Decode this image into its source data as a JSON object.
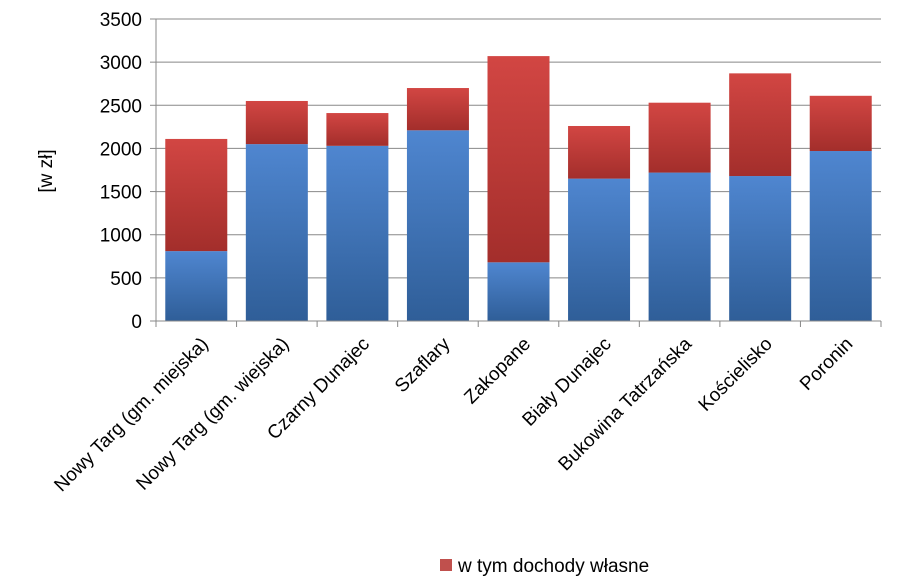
{
  "chart_data": {
    "type": "bar",
    "stacked": true,
    "ylabel": "[w zł]",
    "ylim": [
      0,
      3500
    ],
    "yticks": [
      0,
      500,
      1000,
      1500,
      2000,
      2500,
      3000,
      3500
    ],
    "grid": true,
    "legend_position": "bottom-right",
    "categories": [
      "Nowy Targ (gm. miejska)",
      "Nowy Targ (gm. wiejska)",
      "Czarny Dunajec",
      "Szaflary",
      "Zakopane",
      "Biały Dunajec",
      "Bukowina Tatrzańska",
      "Kościelisko",
      "Poronin"
    ],
    "series": [
      {
        "color": "#4F81BD",
        "values": [
          810,
          2050,
          2030,
          2210,
          680,
          1650,
          1720,
          1680,
          1970
        ]
      },
      {
        "name": "w tym dochody własne",
        "color": "#C0504D",
        "values": [
          1300,
          500,
          380,
          490,
          2390,
          610,
          810,
          1190,
          640
        ]
      }
    ]
  }
}
